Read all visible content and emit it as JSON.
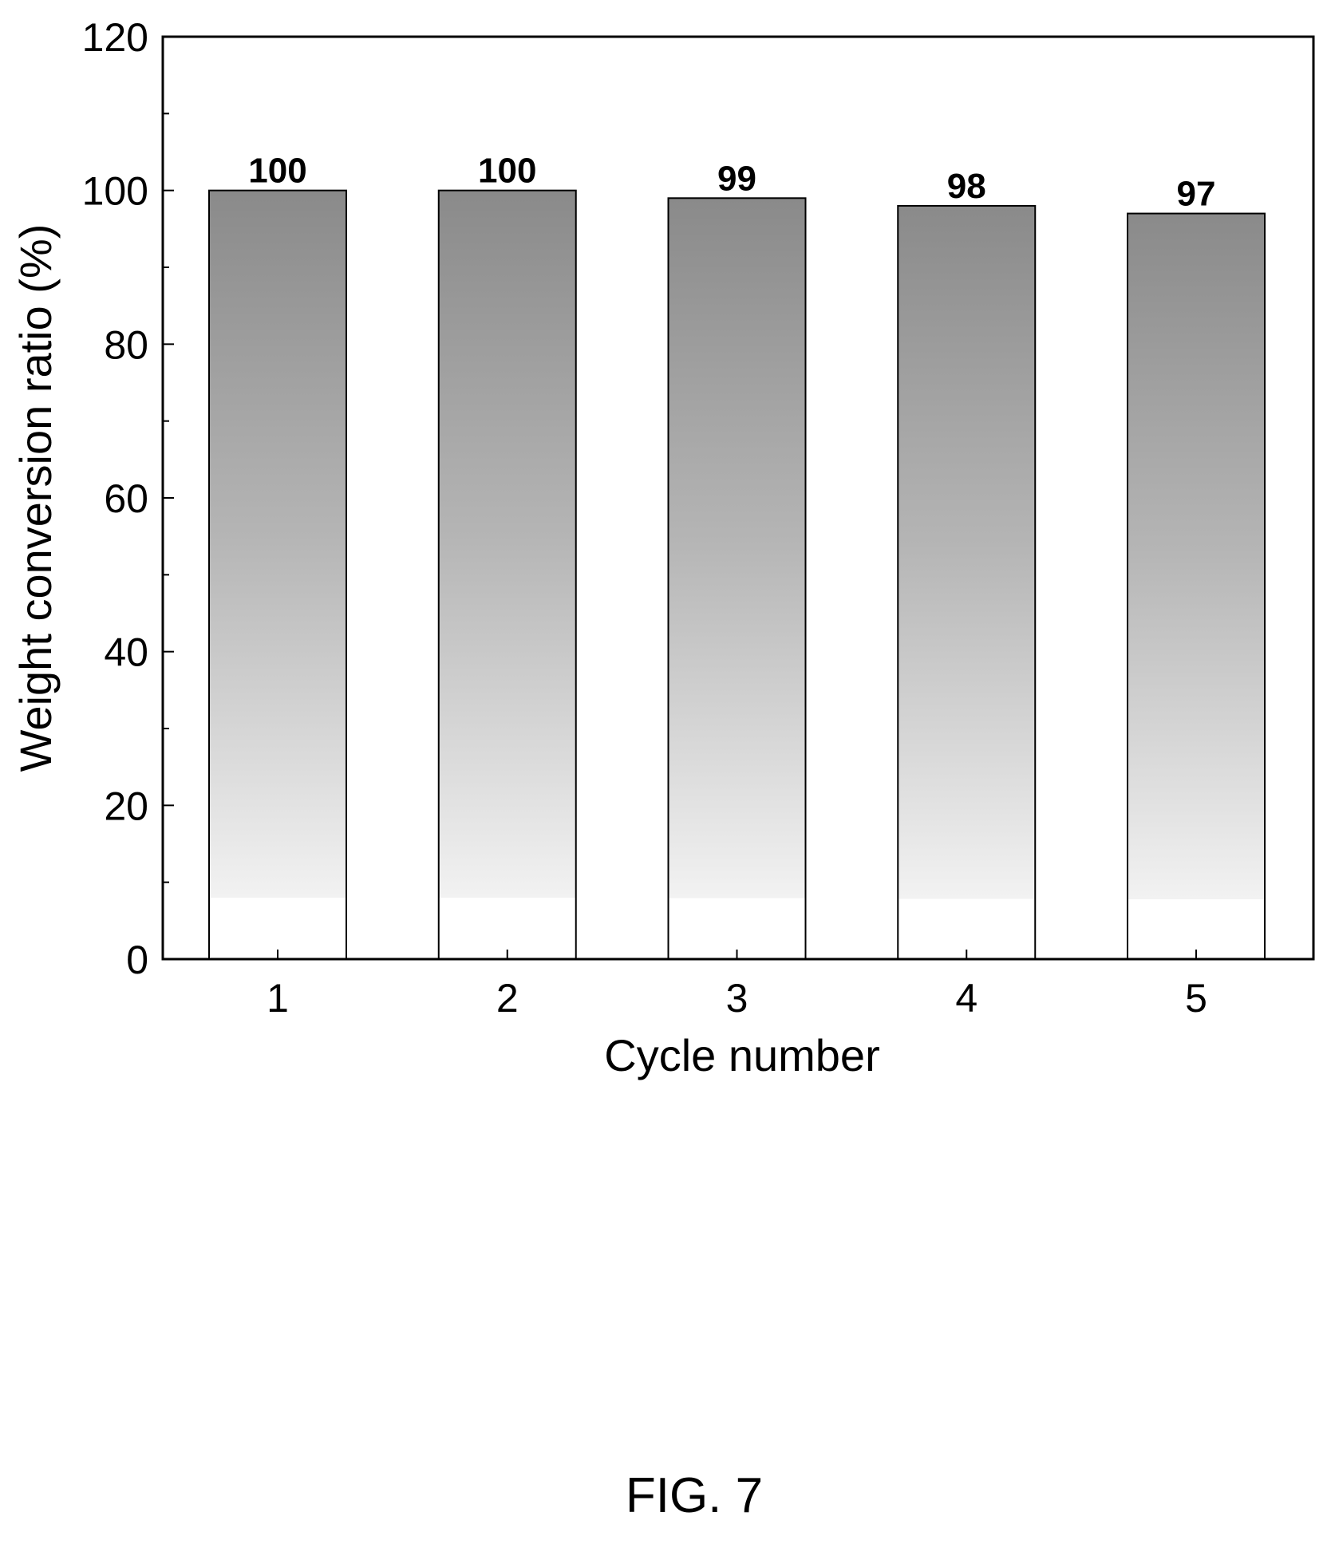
{
  "chart_data": {
    "type": "bar",
    "categories": [
      "1",
      "2",
      "3",
      "4",
      "5"
    ],
    "values": [
      100,
      100,
      99,
      98,
      97
    ],
    "data_labels": [
      "100",
      "100",
      "99",
      "98",
      "97"
    ],
    "title": "",
    "xlabel": "Cycle number",
    "ylabel": "Weight conversion ratio (%)",
    "ylim": [
      0,
      120
    ],
    "yticks": [
      0,
      20,
      40,
      60,
      80,
      100,
      120
    ],
    "ytick_labels": [
      "0",
      "20",
      "40",
      "60",
      "80",
      "100",
      "120"
    ],
    "grid": false,
    "legend": "none",
    "bar_fill_top_color": "#8a8a8a",
    "bar_fill_bottom_color": "#f2f2f2",
    "bar_edge_color": "#000000"
  },
  "caption": "FIG. 7"
}
